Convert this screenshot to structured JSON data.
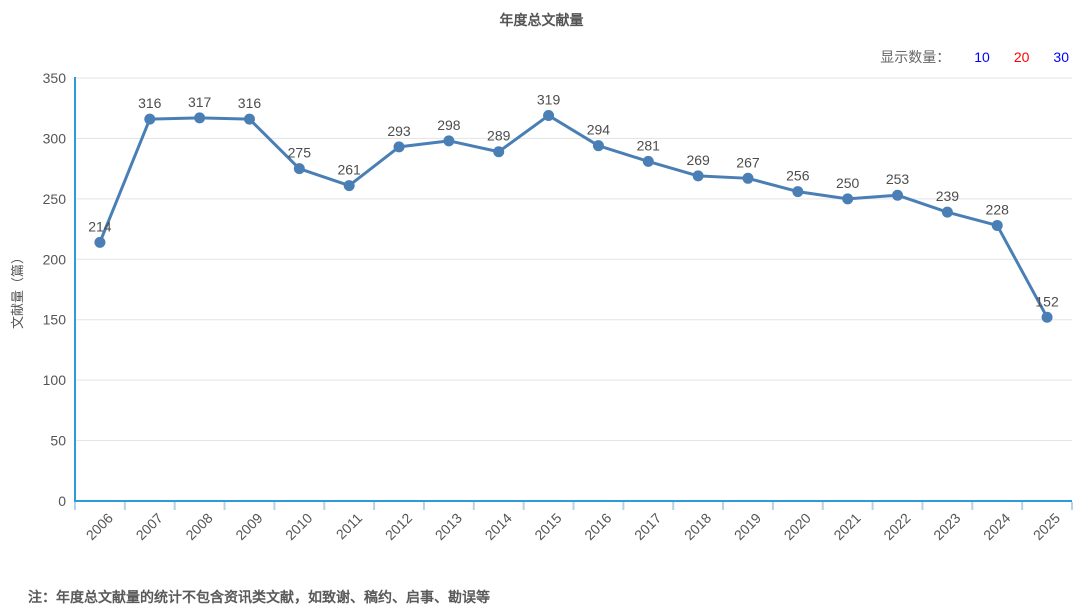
{
  "page": {
    "note": "注：年度总文献量的统计不包含资讯类文献，如致谢、稿约、启事、勘误等"
  },
  "display_control": {
    "label": "显示数量：",
    "options": [
      {
        "label": "10",
        "color": "#0000ff",
        "selected": false
      },
      {
        "label": "20",
        "color": "#ff0000",
        "selected": true
      },
      {
        "label": "30",
        "color": "#0000ff",
        "selected": false
      }
    ]
  },
  "chart_data": {
    "type": "line",
    "title": "年度总文献量",
    "categories": [
      "2006",
      "2007",
      "2008",
      "2009",
      "2010",
      "2011",
      "2012",
      "2013",
      "2014",
      "2015",
      "2016",
      "2017",
      "2018",
      "2019",
      "2020",
      "2021",
      "2022",
      "2023",
      "2024",
      "2025"
    ],
    "values": [
      214,
      316,
      317,
      316,
      275,
      261,
      293,
      298,
      289,
      319,
      294,
      281,
      269,
      267,
      256,
      250,
      253,
      239,
      228,
      152
    ],
    "xlabel": "",
    "ylabel": "文献量（篇）",
    "ylim": [
      0,
      350
    ],
    "ytick_step": 50,
    "grid": true,
    "legend": "none",
    "line_color": "#4a7fb5",
    "axis_color": "#2f9bd6",
    "tick_color": "#b5d3e7",
    "grid_color": "#e3e3e3",
    "label_color": "#4d4d4d",
    "tick_label_color": "#555555"
  }
}
